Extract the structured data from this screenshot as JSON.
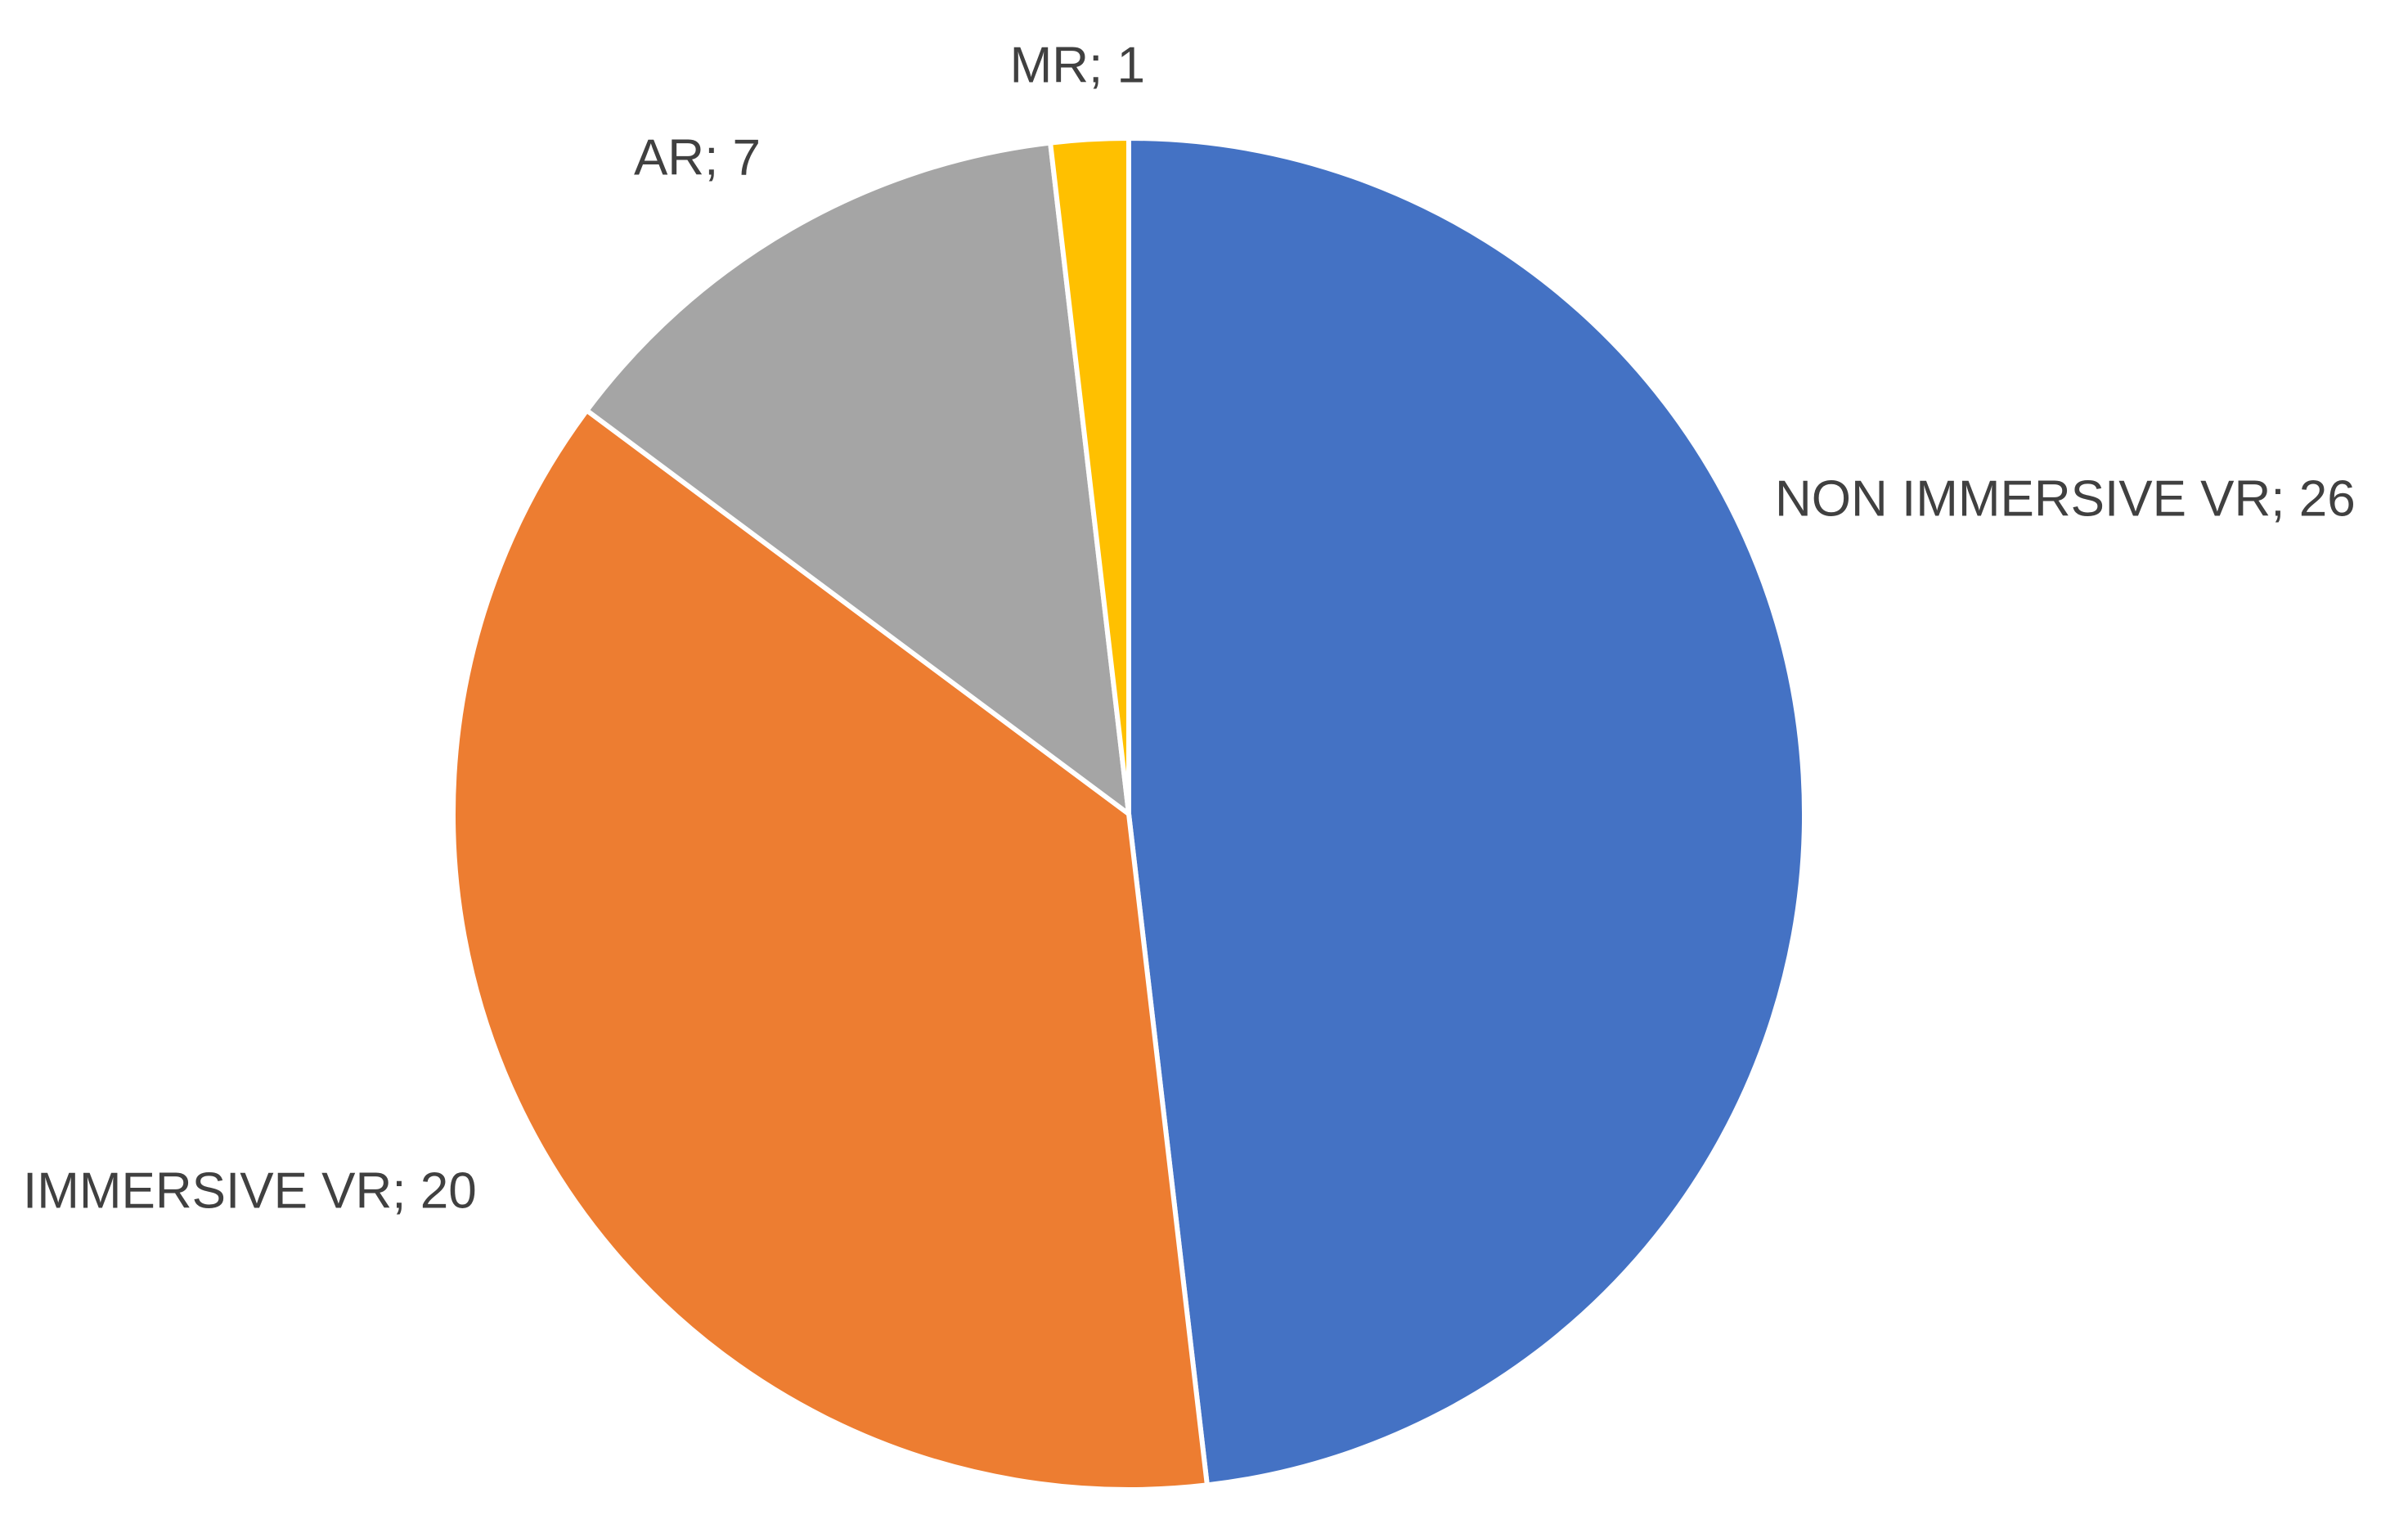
{
  "chart_data": {
    "type": "pie",
    "values": [
      26,
      20,
      7,
      1
    ],
    "value_labels": [
      "NON IMMERSIVE VR; 26",
      "IMMERSIVE VR; 20",
      "AR; 7",
      "MR; 1"
    ],
    "colors": [
      "#4472c4",
      "#ed7d31",
      "#a5a5a5",
      "#ffc000"
    ]
  }
}
